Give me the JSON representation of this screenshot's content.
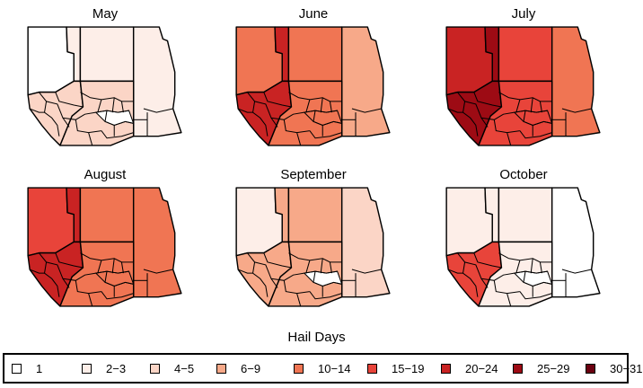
{
  "panels": [
    {
      "title": "May",
      "fills": {
        "west": "1",
        "north_mid": "2-3",
        "north_east": "2-3",
        "south_west": "4-5",
        "south_mid": "4-5",
        "strip": "2-3",
        "ne_strip": "4-5"
      }
    },
    {
      "title": "June",
      "fills": {
        "west": "10-14",
        "north_mid": "10-14",
        "north_east": "6-9",
        "south_west": "20-24",
        "south_mid": "10-14",
        "strip": "20-24",
        "ne_strip": "20-24"
      }
    },
    {
      "title": "July",
      "fills": {
        "west": "20-24",
        "north_mid": "15-19",
        "north_east": "10-14",
        "south_west": "25-29",
        "south_mid": "15-19",
        "strip": "25-29",
        "ne_strip": "30-31"
      }
    },
    {
      "title": "August",
      "fills": {
        "west": "15-19",
        "north_mid": "10-14",
        "north_east": "10-14",
        "south_west": "20-24",
        "south_mid": "10-14",
        "strip": "20-24",
        "ne_strip": "20-24"
      }
    },
    {
      "title": "September",
      "fills": {
        "west": "2-3",
        "north_mid": "6-9",
        "north_east": "4-5",
        "south_west": "6-9",
        "south_mid": "6-9",
        "strip": "6-9",
        "ne_strip": "6-9"
      }
    },
    {
      "title": "October",
      "fills": {
        "west": "2-3",
        "north_mid": "2-3",
        "north_east": "1",
        "south_west": "15-19",
        "south_mid": "2-3",
        "strip": "2-3",
        "ne_strip": "2-3"
      }
    }
  ],
  "legend": {
    "title": "Hail Days",
    "items": [
      {
        "label": "1",
        "color": "#ffffff"
      },
      {
        "label": "2−3",
        "color": "#fdeee8"
      },
      {
        "label": "4−5",
        "color": "#fbd5c6"
      },
      {
        "label": "6−9",
        "color": "#f7a989"
      },
      {
        "label": "10−14",
        "color": "#f07553"
      },
      {
        "label": "15−19",
        "color": "#e8443a"
      },
      {
        "label": "20−24",
        "color": "#c92323"
      },
      {
        "label": "25−29",
        "color": "#9d0b14"
      },
      {
        "label": "30−31",
        "color": "#6b0010"
      }
    ]
  }
}
